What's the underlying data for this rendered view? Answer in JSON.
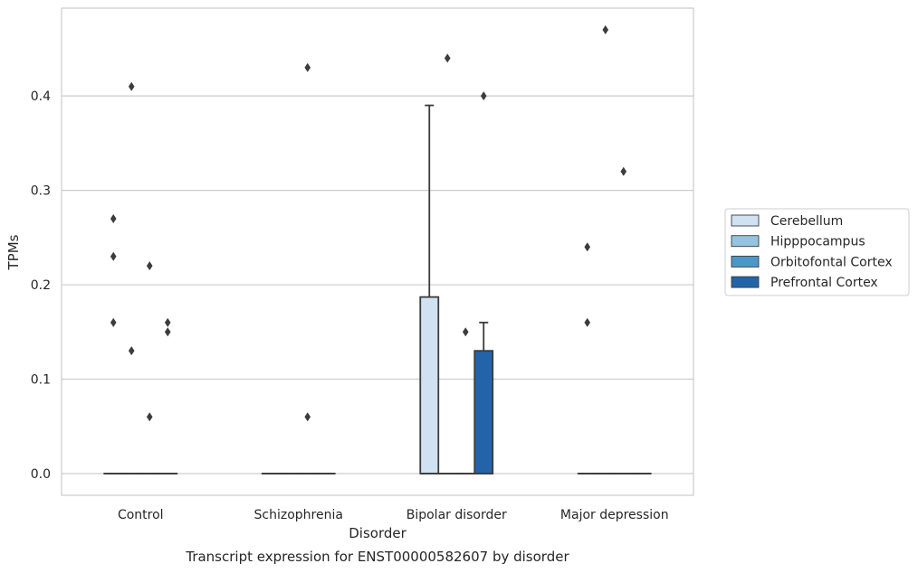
{
  "chart_data": {
    "type": "boxplot",
    "caption": "Transcript expression for ENST00000582607 by disorder",
    "xlabel": "Disorder",
    "ylabel": "TPMs",
    "ylim": [
      -0.023,
      0.493
    ],
    "yticks": [
      0.0,
      0.1,
      0.2,
      0.3,
      0.4
    ],
    "ytick_labels": [
      "0.0",
      "0.1",
      "0.2",
      "0.3",
      "0.4"
    ],
    "grid": "horizontal",
    "legend_position": "right",
    "categories": [
      "Control",
      "Schizophrenia",
      "Bipolar disorder",
      "Major depression"
    ],
    "series": [
      {
        "name": "Cerebellum",
        "color": "#d0e1f2"
      },
      {
        "name": "Hipppocampus",
        "color": "#94c4df"
      },
      {
        "name": "Orbitofontal Cortex",
        "color": "#4a98c9"
      },
      {
        "name": "Prefrontal Cortex",
        "color": "#2363a8"
      }
    ],
    "boxes": [
      {
        "category": 0,
        "series": 0,
        "q1": 0,
        "median": 0,
        "q3": 0,
        "whisker_low": 0,
        "whisker_high": 0,
        "outliers": [
          0.27,
          0.23,
          0.16
        ]
      },
      {
        "category": 0,
        "series": 1,
        "q1": 0,
        "median": 0,
        "q3": 0,
        "whisker_low": 0,
        "whisker_high": 0,
        "outliers": [
          0.41,
          0.13
        ]
      },
      {
        "category": 0,
        "series": 2,
        "q1": 0,
        "median": 0,
        "q3": 0,
        "whisker_low": 0,
        "whisker_high": 0,
        "outliers": [
          0.22,
          0.06
        ]
      },
      {
        "category": 0,
        "series": 3,
        "q1": 0,
        "median": 0,
        "q3": 0,
        "whisker_low": 0,
        "whisker_high": 0,
        "outliers": [
          0.16,
          0.15
        ]
      },
      {
        "category": 1,
        "series": 0,
        "q1": 0,
        "median": 0,
        "q3": 0,
        "whisker_low": 0,
        "whisker_high": 0,
        "outliers": []
      },
      {
        "category": 1,
        "series": 1,
        "q1": 0,
        "median": 0,
        "q3": 0,
        "whisker_low": 0,
        "whisker_high": 0,
        "outliers": []
      },
      {
        "category": 1,
        "series": 2,
        "q1": 0,
        "median": 0,
        "q3": 0,
        "whisker_low": 0,
        "whisker_high": 0,
        "outliers": [
          0.43,
          0.06
        ]
      },
      {
        "category": 1,
        "series": 3,
        "q1": 0,
        "median": 0,
        "q3": 0,
        "whisker_low": 0,
        "whisker_high": 0,
        "outliers": []
      },
      {
        "category": 2,
        "series": 0,
        "q1": 0,
        "median": 0,
        "q3": 0.187,
        "whisker_low": 0,
        "whisker_high": 0.39,
        "outliers": []
      },
      {
        "category": 2,
        "series": 1,
        "q1": 0,
        "median": 0,
        "q3": 0,
        "whisker_low": 0,
        "whisker_high": 0,
        "outliers": [
          0.44
        ]
      },
      {
        "category": 2,
        "series": 2,
        "q1": 0,
        "median": 0,
        "q3": 0,
        "whisker_low": 0,
        "whisker_high": 0,
        "outliers": [
          0.15
        ]
      },
      {
        "category": 2,
        "series": 3,
        "q1": 0,
        "median": 0,
        "q3": 0.13,
        "whisker_low": 0,
        "whisker_high": 0.16,
        "outliers": [
          0.4
        ]
      },
      {
        "category": 3,
        "series": 0,
        "q1": 0,
        "median": 0,
        "q3": 0,
        "whisker_low": 0,
        "whisker_high": 0,
        "outliers": [
          0.24,
          0.16
        ]
      },
      {
        "category": 3,
        "series": 1,
        "q1": 0,
        "median": 0,
        "q3": 0,
        "whisker_low": 0,
        "whisker_high": 0,
        "outliers": [
          0.47
        ]
      },
      {
        "category": 3,
        "series": 2,
        "q1": 0,
        "median": 0,
        "q3": 0,
        "whisker_low": 0,
        "whisker_high": 0,
        "outliers": [
          0.32
        ]
      },
      {
        "category": 3,
        "series": 3,
        "q1": 0,
        "median": 0,
        "q3": 0,
        "whisker_low": 0,
        "whisker_high": 0,
        "outliers": []
      }
    ]
  }
}
